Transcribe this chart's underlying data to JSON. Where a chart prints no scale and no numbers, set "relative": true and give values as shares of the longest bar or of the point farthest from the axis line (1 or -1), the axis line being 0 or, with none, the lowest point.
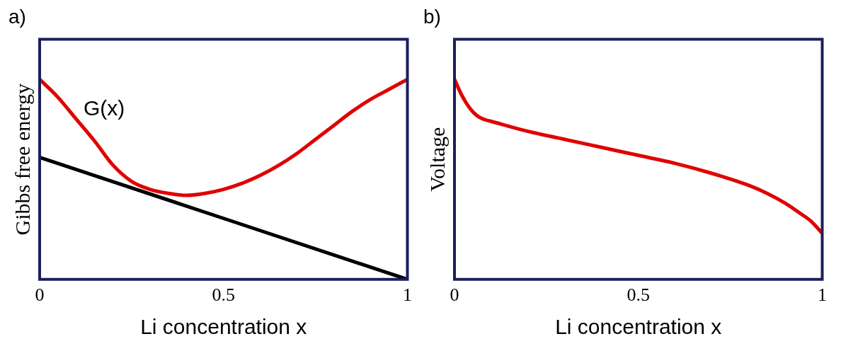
{
  "chart_data": [
    {
      "type": "line",
      "title": "a)",
      "xlabel": "Li concentration x",
      "ylabel": "Gibbs free energy",
      "relative": true,
      "xlim": [
        0,
        1
      ],
      "xticks": [
        0,
        0.5,
        1
      ],
      "grid": false,
      "legend": false,
      "marker": "none",
      "series": [
        {
          "name": "G(x)",
          "color": "#e00000",
          "x": [
            0,
            0.05,
            0.1,
            0.15,
            0.2,
            0.25,
            0.3,
            0.35,
            0.4,
            0.45,
            0.5,
            0.55,
            0.6,
            0.65,
            0.7,
            0.75,
            0.8,
            0.85,
            0.9,
            0.95,
            1
          ],
          "values": [
            1.0,
            0.91,
            0.8,
            0.69,
            0.57,
            0.49,
            0.45,
            0.43,
            0.42,
            0.43,
            0.45,
            0.48,
            0.52,
            0.57,
            0.63,
            0.7,
            0.77,
            0.84,
            0.9,
            0.95,
            1.0
          ]
        },
        {
          "color": "#000000",
          "x": [
            0,
            1
          ],
          "values": [
            0.61,
            0
          ]
        }
      ]
    },
    {
      "type": "line",
      "title": "b)",
      "xlabel": "Li concentration x",
      "ylabel": "Voltage",
      "relative": true,
      "xlim": [
        0,
        1
      ],
      "xticks": [
        0,
        0.5,
        1
      ],
      "grid": false,
      "legend": false,
      "marker": "none",
      "series": [
        {
          "color": "#e00000",
          "x": [
            0,
            0.02,
            0.04,
            0.06,
            0.08,
            0.1,
            0.2,
            0.3,
            0.4,
            0.5,
            0.6,
            0.7,
            0.8,
            0.85,
            0.9,
            0.94,
            0.97,
            1.0
          ],
          "values": [
            1.0,
            0.92,
            0.86,
            0.82,
            0.8,
            0.79,
            0.74,
            0.7,
            0.66,
            0.62,
            0.58,
            0.53,
            0.47,
            0.43,
            0.38,
            0.33,
            0.29,
            0.23
          ]
        }
      ]
    }
  ]
}
